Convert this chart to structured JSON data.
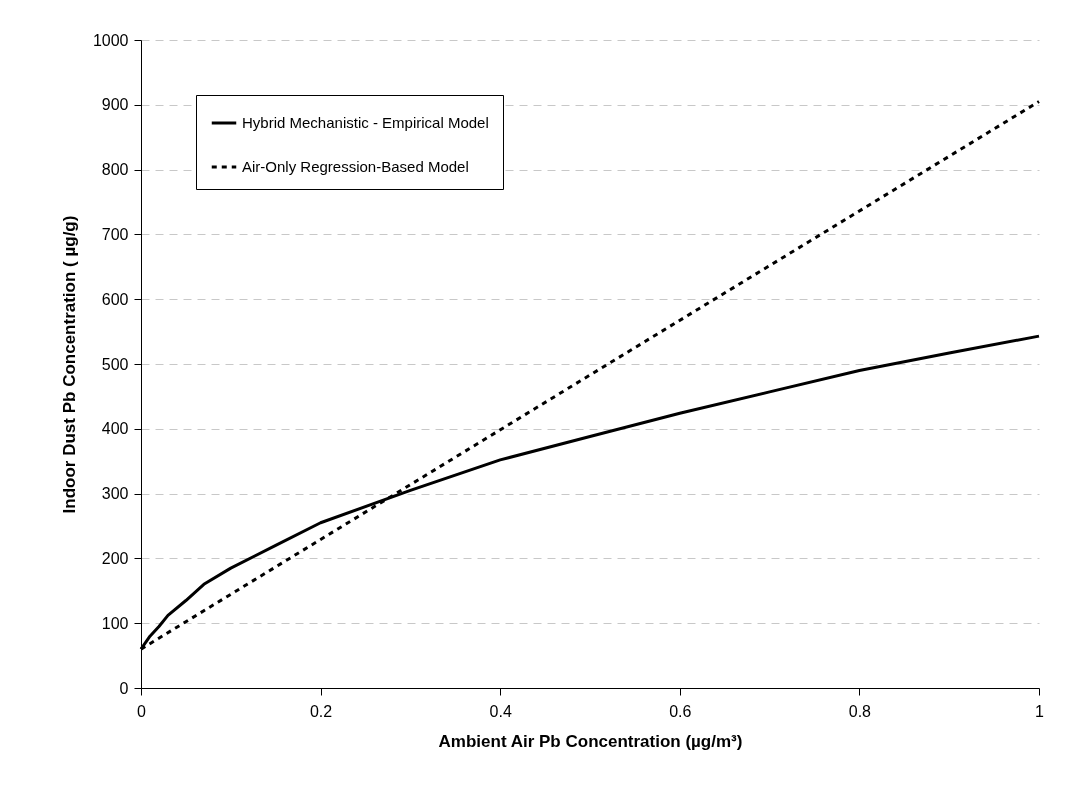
{
  "chart_data": {
    "type": "line",
    "xlabel": "Ambient Air Pb Concentration (µg/m³)",
    "ylabel": "Indoor Dust Pb Concentration ( µg/g)",
    "xlim": [
      0,
      1
    ],
    "xticks": [
      0,
      0.2,
      0.4,
      0.6,
      0.8,
      1
    ],
    "ylim": [
      0,
      1000
    ],
    "yticks": [
      0,
      100,
      200,
      300,
      400,
      500,
      600,
      700,
      800,
      900,
      1000
    ],
    "grid": "y",
    "legend": "top left",
    "marker": "none",
    "x": [
      0,
      0.01,
      0.02,
      0.03,
      0.05,
      0.07,
      0.1,
      0.15,
      0.2,
      0.3,
      0.4,
      0.5,
      0.6,
      0.7,
      0.8,
      0.9,
      1
    ],
    "series": [
      {
        "name": "Hybrid Mechanistic - Empirical Model",
        "color": "#000000",
        "line_style": "solid",
        "values": [
          60,
          80,
          95,
          112,
          135,
          160,
          185,
          220,
          255,
          305,
          352,
          388,
          424,
          457,
          490,
          517,
          543
        ]
      },
      {
        "name": "Air-Only Regression-Based Model",
        "color": "#000000",
        "line_style": "dotted",
        "x": [
          0,
          0.5,
          1
        ],
        "values": [
          60,
          483,
          905
        ]
      }
    ]
  }
}
